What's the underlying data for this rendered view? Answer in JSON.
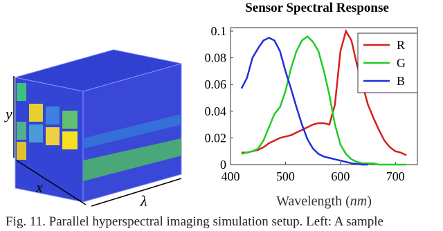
{
  "illustration": {
    "labels": [
      "y",
      "x",
      "λ"
    ]
  },
  "chart_data": {
    "type": "line",
    "title": "Sensor Spectral Response",
    "xlabel": "Wavelength",
    "xlabel_unit": "nm",
    "x": [
      420,
      430,
      440,
      450,
      460,
      470,
      480,
      490,
      500,
      510,
      520,
      530,
      540,
      550,
      560,
      570,
      580,
      590,
      600,
      610,
      620,
      630,
      640,
      650,
      660,
      670,
      680,
      690,
      700,
      710,
      720
    ],
    "xlim": [
      400,
      740
    ],
    "xticks": [
      400,
      500,
      600,
      700
    ],
    "ylim": [
      0,
      0.1
    ],
    "yticks": [
      0,
      0.02,
      0.04,
      0.06,
      0.08,
      0.1
    ],
    "legend": "upper-right",
    "series": [
      {
        "name": "R",
        "color": "#d62020",
        "values": [
          0.009,
          0.009,
          0.01,
          0.011,
          0.013,
          0.016,
          0.018,
          0.02,
          0.021,
          0.022,
          0.024,
          0.026,
          0.028,
          0.03,
          0.031,
          0.031,
          0.03,
          0.045,
          0.085,
          0.1,
          0.093,
          0.075,
          0.06,
          0.045,
          0.035,
          0.026,
          0.018,
          0.013,
          0.01,
          0.009,
          0.007
        ]
      },
      {
        "name": "G",
        "color": "#22cc22",
        "values": [
          0.008,
          0.009,
          0.01,
          0.012,
          0.018,
          0.028,
          0.038,
          0.043,
          0.055,
          0.072,
          0.085,
          0.093,
          0.096,
          0.092,
          0.085,
          0.07,
          0.052,
          0.03,
          0.015,
          0.008,
          0.004,
          0.002,
          0.001,
          0.001,
          0.001,
          0,
          0,
          0,
          0,
          0,
          0
        ]
      },
      {
        "name": "B",
        "color": "#2030d8",
        "values": [
          0.057,
          0.065,
          0.08,
          0.087,
          0.093,
          0.095,
          0.093,
          0.085,
          0.07,
          0.057,
          0.043,
          0.03,
          0.019,
          0.012,
          0.008,
          0.006,
          0.005,
          0.004,
          0.003,
          0.002,
          0.001,
          0.0005,
          0,
          0,
          null,
          null,
          null,
          null,
          null,
          null,
          null
        ]
      }
    ]
  },
  "caption": "Fig. 11.  Parallel hyperspectral imaging simulation setup.  Left: A sample"
}
